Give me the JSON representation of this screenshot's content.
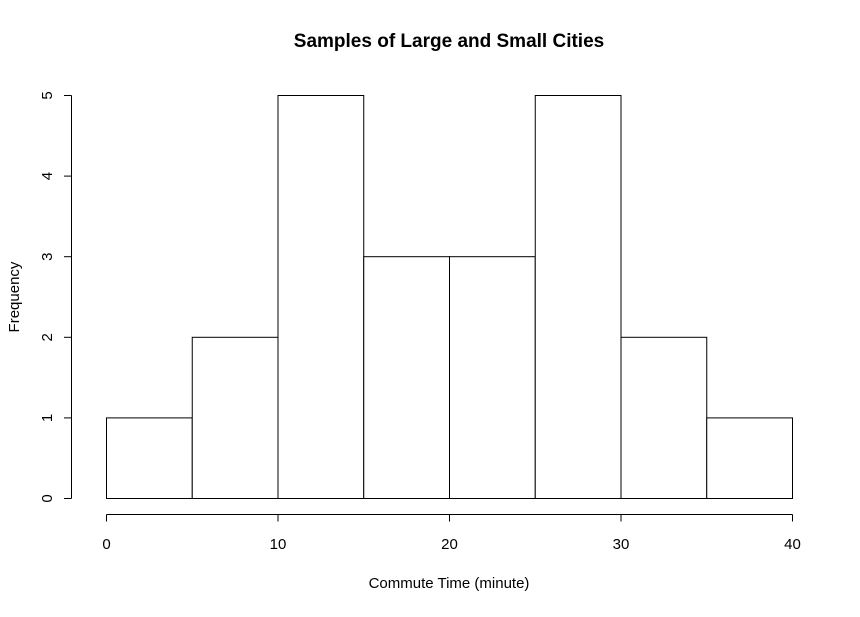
{
  "chart_data": {
    "type": "bar",
    "subtype": "histogram",
    "title": "Samples of Large and Small Cities",
    "xlabel": "Commute Time (minute)",
    "ylabel": "Frequency",
    "bins": [
      {
        "start": 0,
        "end": 5,
        "count": 1
      },
      {
        "start": 5,
        "end": 10,
        "count": 2
      },
      {
        "start": 10,
        "end": 15,
        "count": 5
      },
      {
        "start": 15,
        "end": 20,
        "count": 3
      },
      {
        "start": 20,
        "end": 25,
        "count": 3
      },
      {
        "start": 25,
        "end": 30,
        "count": 5
      },
      {
        "start": 30,
        "end": 35,
        "count": 2
      },
      {
        "start": 35,
        "end": 40,
        "count": 1
      }
    ],
    "xlim": [
      0,
      40
    ],
    "ylim": [
      0,
      5
    ],
    "x_ticks": [
      0,
      10,
      20,
      30,
      40
    ],
    "y_ticks": [
      0,
      1,
      2,
      3,
      4,
      5
    ],
    "grid": false,
    "bar_fill": "#ffffff",
    "bar_stroke": "#000000"
  }
}
